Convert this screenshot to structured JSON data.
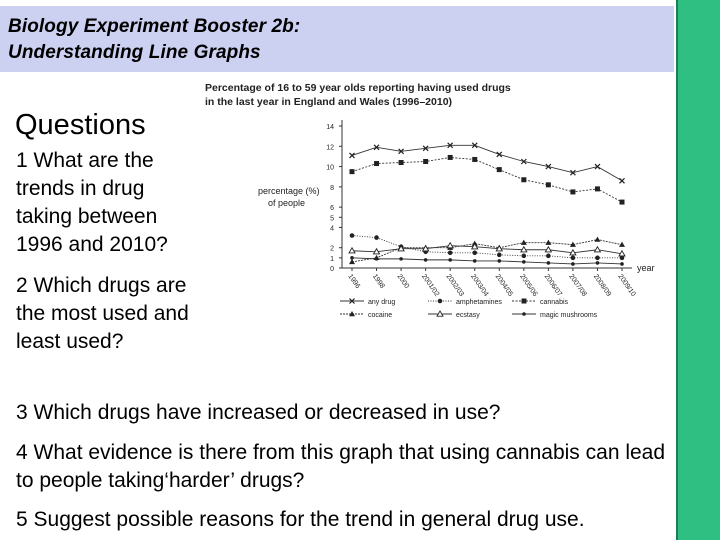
{
  "header": {
    "line1": "Biology Experiment Booster 2b:",
    "line2": "Understanding Line Graphs"
  },
  "questions": {
    "title": "Questions",
    "q1": "1 What are the trends in drug taking between 1996 and 2010?",
    "q2": "2 Which drugs are the most used and least used?",
    "q3": "3 Which drugs have increased or decreased in use?",
    "q4": "4 What evidence is there from this graph that using cannabis can lead to people taking‘harder’ drugs?",
    "q5": "5 Suggest possible reasons for the trend in general drug use."
  },
  "colors": {
    "header_bg": "#cdd1f1",
    "side_bar": "#2fbf83"
  },
  "chart_data": {
    "type": "line",
    "title_line1": "Percentage of 16 to 59 year olds reporting having used drugs",
    "title_line2": "in the last year in England and Wales (1996–2010)",
    "ylabel_line1": "percentage (%)",
    "ylabel_line2": "of people",
    "xlabel": "year",
    "ylim": [
      0,
      14
    ],
    "yticks": [
      0,
      1,
      2,
      4,
      5,
      6,
      8,
      10,
      12,
      14
    ],
    "x": [
      "1996",
      "1998",
      "2000",
      "2001/02",
      "2002/03",
      "2003/04",
      "2004/05",
      "2005/06",
      "2006/07",
      "2007/08",
      "2008/09",
      "2009/10"
    ],
    "series": [
      {
        "name": "any drug",
        "marker": "x",
        "values": [
          11.1,
          11.9,
          11.5,
          11.8,
          12.1,
          12.1,
          11.2,
          10.5,
          10.0,
          9.4,
          10.0,
          8.6
        ]
      },
      {
        "name": "amphetamines",
        "marker": "dot",
        "values": [
          3.2,
          3.0,
          2.1,
          1.6,
          1.5,
          1.5,
          1.3,
          1.2,
          1.2,
          1.0,
          1.0,
          1.0
        ]
      },
      {
        "name": "cannabis",
        "marker": "square",
        "values": [
          9.5,
          10.3,
          10.4,
          10.5,
          10.9,
          10.7,
          9.7,
          8.7,
          8.2,
          7.5,
          7.8,
          6.5
        ]
      },
      {
        "name": "cocaine",
        "marker": "triangle-filled",
        "values": [
          0.6,
          1.0,
          2.0,
          2.0,
          2.0,
          2.4,
          2.0,
          2.5,
          2.5,
          2.3,
          2.8,
          2.3
        ]
      },
      {
        "name": "ecstasy",
        "marker": "triangle-open",
        "values": [
          1.7,
          1.6,
          1.9,
          1.9,
          2.2,
          2.1,
          1.9,
          1.8,
          1.8,
          1.5,
          1.8,
          1.4
        ]
      },
      {
        "name": "magic mushrooms",
        "marker": "dot-small",
        "values": [
          1.0,
          0.9,
          0.9,
          0.8,
          0.8,
          0.7,
          0.7,
          0.6,
          0.5,
          0.4,
          0.5,
          0.4
        ]
      }
    ],
    "legend_position": "bottom",
    "grid": false
  }
}
